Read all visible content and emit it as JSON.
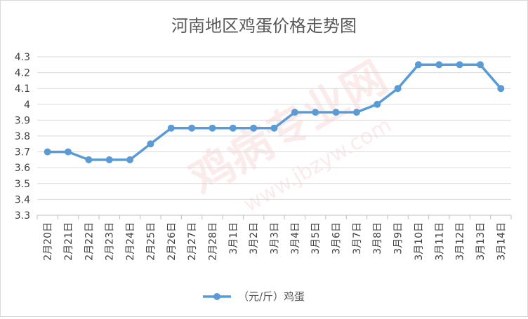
{
  "chart_data": {
    "type": "line",
    "title": "河南地区鸡蛋价格走势图",
    "xlabel": "",
    "ylabel": "",
    "ylim": [
      3.3,
      4.3
    ],
    "yticks": [
      "3.3",
      "3.4",
      "3.5",
      "3.6",
      "3.7",
      "3.8",
      "3.9",
      "4",
      "4.1",
      "4.2",
      "4.3"
    ],
    "grid": true,
    "legend_position": "bottom",
    "categories": [
      "2月20日",
      "2月21日",
      "2月22日",
      "2月23日",
      "2月24日",
      "2月25日",
      "2月26日",
      "2月27日",
      "2月28日",
      "3月1日",
      "3月2日",
      "3月3日",
      "3月4日",
      "3月5日",
      "3月6日",
      "3月7日",
      "3月8日",
      "3月9日",
      "3月10日",
      "3月11日",
      "3月12日",
      "3月13日",
      "3月14日"
    ],
    "series": [
      {
        "name": "（元/斤）鸡蛋",
        "color": "#5b9bd5",
        "values": [
          3.7,
          3.7,
          3.65,
          3.65,
          3.65,
          3.75,
          3.85,
          3.85,
          3.85,
          3.85,
          3.85,
          3.85,
          3.95,
          3.95,
          3.95,
          3.95,
          4.0,
          4.1,
          4.25,
          4.25,
          4.25,
          4.25,
          4.1
        ]
      }
    ]
  },
  "watermark": {
    "text": "鸡病专业网",
    "url": "www.jbzyw.com"
  }
}
